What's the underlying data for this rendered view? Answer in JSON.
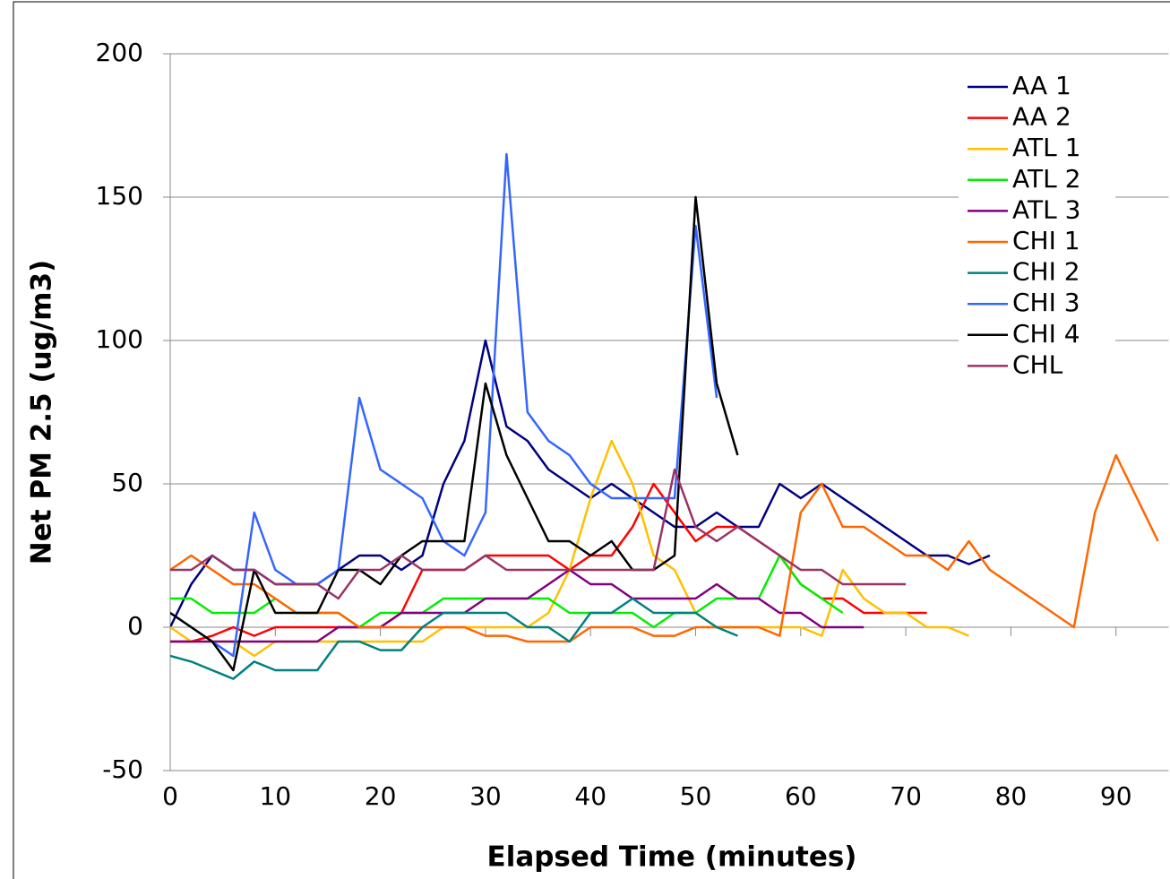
{
  "chart_data": {
    "type": "line",
    "x_label": "Elapsed Time (minutes)",
    "y_label": "Net PM 2.5 (ug/m3)",
    "x": [
      0,
      2,
      4,
      6,
      8,
      10,
      12,
      14,
      16,
      18,
      20,
      22,
      24,
      26,
      28,
      30,
      32,
      34,
      36,
      38,
      40,
      42,
      44,
      46,
      48,
      50,
      52,
      54,
      56,
      58,
      60,
      62,
      64,
      66,
      68,
      70,
      72,
      74,
      76,
      78,
      80,
      82,
      84,
      86,
      88,
      90,
      92,
      94
    ],
    "xlim": [
      0,
      95
    ],
    "xticks": [
      0,
      10,
      20,
      30,
      40,
      50,
      60,
      70,
      80,
      90
    ],
    "ylim": [
      -50,
      200
    ],
    "yticks": [
      -50,
      0,
      50,
      100,
      150,
      200
    ],
    "grid": true,
    "legend": "top-right",
    "series": [
      {
        "name": "AA 1",
        "color": "#000080",
        "values": [
          0,
          15,
          25,
          20,
          20,
          15,
          15,
          15,
          20,
          25,
          25,
          20,
          25,
          50,
          65,
          100,
          70,
          65,
          55,
          50,
          45,
          50,
          45,
          40,
          35,
          35,
          40,
          35,
          35,
          50,
          45,
          50,
          45,
          40,
          35,
          30,
          25,
          25,
          22,
          25,
          null,
          null,
          null,
          null,
          null,
          null,
          null,
          null
        ]
      },
      {
        "name": "AA 2",
        "color": "#ff0000",
        "values": [
          -5,
          -5,
          -3,
          0,
          -3,
          0,
          0,
          0,
          0,
          0,
          0,
          5,
          20,
          20,
          20,
          25,
          25,
          25,
          25,
          20,
          25,
          25,
          35,
          50,
          40,
          30,
          35,
          35,
          30,
          25,
          15,
          10,
          10,
          5,
          5,
          5,
          5,
          null,
          null,
          null,
          null,
          null,
          null,
          null,
          null,
          null,
          null,
          null
        ]
      },
      {
        "name": "ATL 1",
        "color": "#ffc000",
        "values": [
          0,
          -5,
          -5,
          -5,
          -10,
          -5,
          -5,
          -5,
          -5,
          -5,
          -5,
          -5,
          -5,
          0,
          0,
          0,
          0,
          0,
          5,
          20,
          45,
          65,
          50,
          25,
          20,
          5,
          0,
          0,
          0,
          0,
          0,
          -3,
          20,
          10,
          5,
          5,
          0,
          0,
          -3,
          null,
          null,
          null,
          null,
          null,
          null,
          null,
          null,
          null
        ]
      },
      {
        "name": "ATL 2",
        "color": "#00ee00",
        "values": [
          10,
          10,
          5,
          5,
          5,
          10,
          5,
          5,
          5,
          0,
          5,
          5,
          5,
          10,
          10,
          10,
          10,
          10,
          10,
          5,
          5,
          5,
          5,
          0,
          5,
          5,
          10,
          10,
          10,
          25,
          15,
          10,
          5,
          null,
          null,
          null,
          null,
          null,
          null,
          null,
          null,
          null,
          null,
          null,
          null,
          null,
          null,
          null
        ]
      },
      {
        "name": "ATL 3",
        "color": "#800080",
        "values": [
          -5,
          -5,
          -5,
          -5,
          -5,
          -5,
          -5,
          -5,
          0,
          0,
          0,
          5,
          5,
          5,
          5,
          10,
          10,
          10,
          15,
          20,
          15,
          15,
          10,
          10,
          10,
          10,
          15,
          10,
          10,
          5,
          5,
          0,
          0,
          0,
          null,
          null,
          null,
          null,
          null,
          null,
          null,
          null,
          null,
          null,
          null,
          null,
          null,
          null
        ]
      },
      {
        "name": "CHI 1",
        "color": "#ff6600",
        "values": [
          20,
          25,
          20,
          15,
          15,
          10,
          5,
          5,
          5,
          0,
          0,
          0,
          0,
          0,
          0,
          -3,
          -3,
          -5,
          -5,
          -5,
          0,
          0,
          0,
          -3,
          -3,
          0,
          0,
          0,
          0,
          -3,
          40,
          50,
          35,
          35,
          30,
          25,
          25,
          20,
          30,
          20,
          15,
          10,
          5,
          0,
          40,
          60,
          45,
          30
        ]
      },
      {
        "name": "CHI 2",
        "color": "#008080",
        "values": [
          -10,
          -12,
          -15,
          -18,
          -12,
          -15,
          -15,
          -15,
          -5,
          -5,
          -8,
          -8,
          0,
          5,
          5,
          5,
          5,
          0,
          0,
          -5,
          5,
          5,
          10,
          5,
          5,
          5,
          0,
          -3,
          null,
          null,
          null,
          null,
          null,
          null,
          null,
          null,
          null,
          null,
          null,
          null,
          null,
          null,
          null,
          null,
          null,
          null,
          null,
          null
        ]
      },
      {
        "name": "CHI 3",
        "color": "#3366ff",
        "values": [
          5,
          0,
          -5,
          -10,
          40,
          20,
          15,
          15,
          20,
          80,
          55,
          50,
          45,
          30,
          25,
          40,
          165,
          75,
          65,
          60,
          50,
          45,
          45,
          45,
          45,
          140,
          80,
          null,
          null,
          null,
          null,
          null,
          null,
          null,
          null,
          null,
          null,
          null,
          null,
          null,
          null,
          null,
          null,
          null,
          null,
          null,
          null,
          null
        ]
      },
      {
        "name": "CHI 4",
        "color": "#000000",
        "values": [
          5,
          0,
          -5,
          -15,
          20,
          5,
          5,
          5,
          20,
          20,
          15,
          25,
          30,
          30,
          30,
          85,
          60,
          45,
          30,
          30,
          25,
          30,
          20,
          20,
          25,
          150,
          85,
          60,
          null,
          null,
          null,
          null,
          null,
          null,
          null,
          null,
          null,
          null,
          null,
          null,
          null,
          null,
          null,
          null,
          null,
          null,
          null,
          null
        ]
      },
      {
        "name": "CHL",
        "color": "#993366",
        "values": [
          20,
          20,
          25,
          20,
          20,
          15,
          15,
          15,
          10,
          20,
          20,
          25,
          20,
          20,
          20,
          25,
          20,
          20,
          20,
          20,
          20,
          20,
          20,
          20,
          55,
          35,
          30,
          35,
          30,
          25,
          20,
          20,
          15,
          15,
          15,
          15,
          null,
          null,
          null,
          null,
          null,
          null,
          null,
          null,
          null,
          null,
          null,
          null
        ]
      }
    ]
  }
}
